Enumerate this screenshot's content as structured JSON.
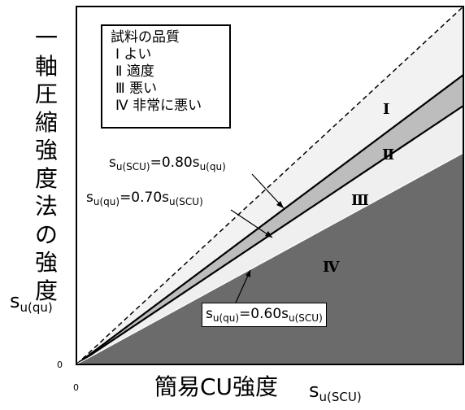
{
  "y_axis": {
    "title_chars": [
      "一",
      "軸",
      "圧",
      "縮",
      "強",
      "度",
      "法",
      "の",
      "強",
      "度"
    ],
    "symbol_base": "s",
    "symbol_sub": "u(qu)",
    "origin": "0"
  },
  "x_axis": {
    "title": "簡易CU強度",
    "symbol_base": "s",
    "symbol_sub": "u(SCU)",
    "origin": "0"
  },
  "legend": {
    "title": "試料の品質",
    "items": [
      {
        "numeral": "Ⅰ",
        "label": "よい"
      },
      {
        "numeral": "Ⅱ",
        "label": "適度"
      },
      {
        "numeral": "Ⅲ",
        "label": "悪い"
      },
      {
        "numeral": "Ⅳ",
        "label": "非常に悪い"
      }
    ]
  },
  "zones": [
    {
      "numeral": "Ⅰ",
      "color": "#f2f2f2"
    },
    {
      "numeral": "Ⅱ",
      "color": "#bdbdbd"
    },
    {
      "numeral": "Ⅲ",
      "color": "#efefef"
    },
    {
      "numeral": "Ⅳ",
      "color": "#6b6b6b"
    }
  ],
  "equations": {
    "eq080": {
      "lhs": "s",
      "lhs_sub": "u(SCU)",
      "rhs": "=0.80s",
      "rhs_sub": "u(qu)"
    },
    "eq070": {
      "lhs": "s",
      "lhs_sub": "u(qu)",
      "rhs": "=0.70s",
      "rhs_sub": "u(SCU)"
    },
    "eq060": {
      "lhs": "s",
      "lhs_sub": "u(qu)",
      "rhs": "=0.60s",
      "rhs_sub": "u(SCU)"
    }
  }
}
